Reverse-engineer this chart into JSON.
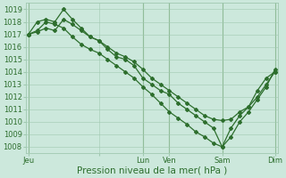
{
  "bg_color": "#cce8dc",
  "grid_color": "#a0c8b0",
  "line_color": "#2d6e2d",
  "marker_color": "#2d6e2d",
  "xlabel": "Pression niveau de la mer( hPa )",
  "xlabel_fontsize": 7.5,
  "tick_fontsize": 6,
  "ylim": [
    1007.5,
    1019.5
  ],
  "yticks": [
    1008,
    1009,
    1010,
    1011,
    1012,
    1013,
    1014,
    1015,
    1016,
    1017,
    1018,
    1019
  ],
  "xlim": [
    -0.3,
    28.3
  ],
  "day_positions": [
    0.0,
    8.0,
    13.0,
    16.0,
    22.0,
    28.0
  ],
  "day_labels": [
    "Jeu",
    "",
    "Lun",
    "Ven",
    "Sam",
    "Dim"
  ],
  "vline_positions": [
    0.0,
    13.0,
    16.0,
    22.0,
    28.0
  ],
  "series1_x": [
    0,
    1,
    2,
    3,
    4,
    5,
    6,
    7,
    8,
    9,
    10,
    11,
    12,
    13,
    14,
    15,
    16,
    17,
    18,
    19,
    20,
    21,
    22,
    23,
    24,
    25,
    26,
    27,
    28
  ],
  "series1_y": [
    1017.0,
    1018.0,
    1018.2,
    1018.0,
    1019.0,
    1018.2,
    1017.5,
    1016.8,
    1016.5,
    1015.8,
    1015.2,
    1015.0,
    1014.5,
    1013.5,
    1013.0,
    1012.5,
    1012.2,
    1011.5,
    1011.0,
    1010.5,
    1010.0,
    1009.5,
    1008.0,
    1009.5,
    1010.5,
    1011.2,
    1012.5,
    1013.5,
    1014.0
  ],
  "series2_x": [
    0,
    1,
    2,
    3,
    4,
    5,
    6,
    7,
    8,
    9,
    10,
    11,
    12,
    13,
    14,
    15,
    16,
    17,
    18,
    19,
    20,
    21,
    22,
    23,
    24,
    25,
    26,
    27,
    28
  ],
  "series2_y": [
    1017.0,
    1017.2,
    1017.5,
    1017.3,
    1018.2,
    1017.8,
    1017.3,
    1016.8,
    1016.5,
    1016.0,
    1015.5,
    1015.2,
    1014.8,
    1014.2,
    1013.5,
    1013.0,
    1012.5,
    1012.0,
    1011.5,
    1011.0,
    1010.5,
    1010.2,
    1010.1,
    1010.2,
    1010.8,
    1011.2,
    1012.0,
    1013.0,
    1014.0
  ],
  "series3_x": [
    0,
    1,
    2,
    3,
    4,
    5,
    6,
    7,
    8,
    9,
    10,
    11,
    12,
    13,
    14,
    15,
    16,
    17,
    18,
    19,
    20,
    21,
    22,
    23,
    24,
    25,
    26,
    27,
    28
  ],
  "series3_y": [
    1017.0,
    1017.3,
    1018.0,
    1017.8,
    1017.5,
    1016.8,
    1016.2,
    1015.8,
    1015.5,
    1015.0,
    1014.5,
    1014.0,
    1013.5,
    1012.8,
    1012.2,
    1011.5,
    1010.8,
    1010.3,
    1009.8,
    1009.2,
    1008.8,
    1008.3,
    1008.0,
    1008.8,
    1010.0,
    1010.8,
    1011.8,
    1012.8,
    1014.2
  ]
}
